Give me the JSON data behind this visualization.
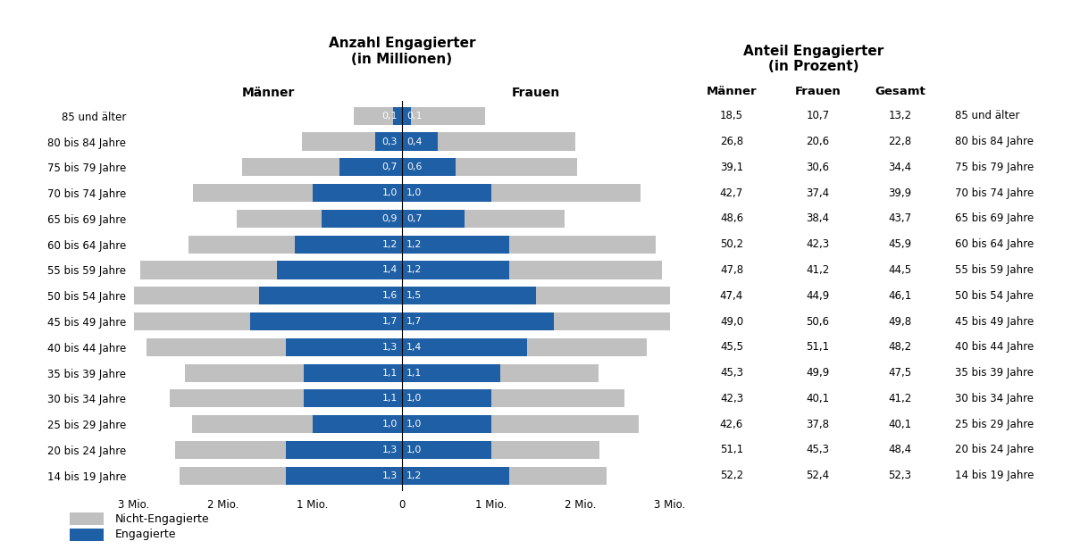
{
  "age_groups": [
    "85 und älter",
    "80 bis 84 Jahre",
    "75 bis 79 Jahre",
    "70 bis 74 Jahre",
    "65 bis 69 Jahre",
    "60 bis 64 Jahre",
    "55 bis 59 Jahre",
    "50 bis 54 Jahre",
    "45 bis 49 Jahre",
    "40 bis 44 Jahre",
    "35 bis 39 Jahre",
    "30 bis 34 Jahre",
    "25 bis 29 Jahre",
    "20 bis 24 Jahre",
    "14 bis 19 Jahre"
  ],
  "men_engaged": [
    0.1,
    0.3,
    0.7,
    1.0,
    0.9,
    1.2,
    1.4,
    1.6,
    1.7,
    1.3,
    1.1,
    1.1,
    1.0,
    1.3,
    1.3
  ],
  "women_engaged": [
    0.1,
    0.4,
    0.6,
    1.0,
    0.7,
    1.2,
    1.2,
    1.5,
    1.7,
    1.4,
    1.1,
    1.0,
    1.0,
    1.0,
    1.2
  ],
  "men_pct": [
    18.5,
    26.8,
    39.1,
    42.7,
    48.6,
    50.2,
    47.8,
    47.4,
    49.0,
    45.5,
    45.3,
    42.3,
    42.6,
    51.1,
    52.2
  ],
  "women_pct": [
    10.7,
    20.6,
    30.6,
    37.4,
    38.4,
    42.3,
    41.2,
    44.9,
    50.6,
    51.1,
    49.9,
    40.1,
    37.8,
    45.3,
    52.4
  ],
  "total_pct": [
    13.2,
    22.8,
    34.4,
    39.9,
    43.7,
    45.9,
    44.5,
    46.1,
    49.8,
    48.2,
    47.5,
    41.2,
    40.1,
    48.4,
    52.3
  ],
  "title_left": "Anzahl Engagierter\n(in Millionen)",
  "title_right": "Anteil Engagierter\n(in Prozent)",
  "label_maenner": "Männer",
  "label_frauen": "Frauen",
  "label_gesamt": "Gesamt",
  "legend_nicht": "Nicht-Engagierte",
  "legend_eng": "Engagierte",
  "color_engaged": "#1F5FA6",
  "color_total": "#C0C0C0",
  "xlim": 3.0,
  "xtick_labels": [
    "3 Mio.",
    "2 Mio.",
    "1 Mio.",
    "0",
    "1 Mio.",
    "2 Mio.",
    "3 Mio."
  ],
  "xtick_vals": [
    -3,
    -2,
    -1,
    0,
    1,
    2,
    3
  ]
}
